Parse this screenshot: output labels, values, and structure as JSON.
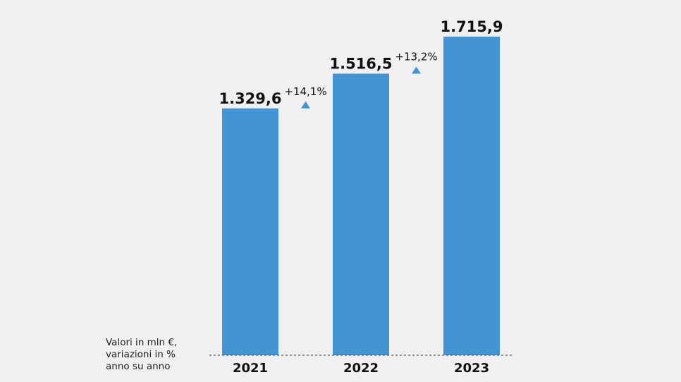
{
  "note": {
    "lines": [
      "Valori in mln €,",
      "variazioni in %",
      "anno su anno"
    ]
  },
  "chart_data": {
    "type": "bar",
    "title": "",
    "xlabel": "",
    "ylabel": "",
    "categories": [
      "2021",
      "2022",
      "2023"
    ],
    "values": [
      1329.6,
      1516.5,
      1715.9
    ],
    "value_labels": [
      "1.329,6",
      "1.516,5",
      "1.715,9"
    ],
    "changes": [
      {
        "between": [
          "2021",
          "2022"
        ],
        "label": "+14,1%",
        "direction": "up"
      },
      {
        "between": [
          "2022",
          "2023"
        ],
        "label": "+13,2%",
        "direction": "up"
      }
    ],
    "ylim": [
      0,
      1715.9
    ],
    "grid": false,
    "legend": "none",
    "colors": {
      "bar": "#4494d4",
      "arrow": "#4494d4"
    }
  }
}
